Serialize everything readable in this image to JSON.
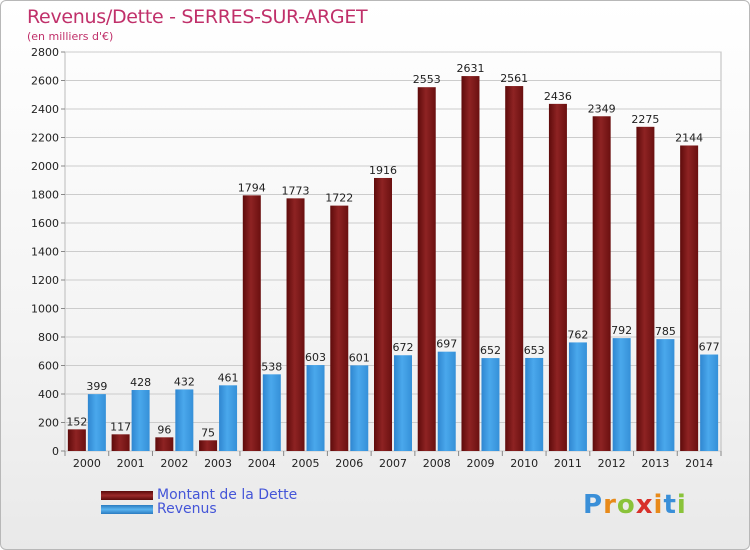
{
  "header": {
    "title": "Revenus/Dette - SERRES-SUR-ARGET",
    "subtitle": "(en milliers d'€)"
  },
  "legend": {
    "debt_label": "Montant de la Dette",
    "revenue_label": "Revenus"
  },
  "logo": {
    "letters": [
      "P",
      "r",
      "o",
      "x",
      "i",
      "t",
      "i"
    ],
    "colors": [
      "#3a8fd8",
      "#e88a1a",
      "#8ac33a",
      "#d8302a",
      "#e88a1a",
      "#3a8fd8",
      "#8ac33a"
    ]
  },
  "colors": {
    "debt": "#8b1a1a",
    "revenue": "#3a9be0",
    "grid": "#cccccc",
    "title": "#c0306a"
  },
  "chart_data": {
    "type": "bar",
    "title": "Revenus/Dette - SERRES-SUR-ARGET",
    "subtitle": "(en milliers d'€)",
    "categories": [
      "2000",
      "2001",
      "2002",
      "2003",
      "2004",
      "2005",
      "2006",
      "2007",
      "2008",
      "2009",
      "2010",
      "2011",
      "2012",
      "2013",
      "2014"
    ],
    "series": [
      {
        "name": "Montant de la Dette",
        "values": [
          152,
          117,
          96,
          75,
          1794,
          1773,
          1722,
          1916,
          2553,
          2631,
          2561,
          2436,
          2349,
          2275,
          2144
        ]
      },
      {
        "name": "Revenus",
        "values": [
          399,
          428,
          432,
          461,
          538,
          603,
          601,
          672,
          697,
          652,
          653,
          762,
          792,
          785,
          677
        ]
      }
    ],
    "ylim": [
      0,
      2800
    ],
    "yticks": [
      0,
      200,
      400,
      600,
      800,
      1000,
      1200,
      1400,
      1600,
      1800,
      2000,
      2200,
      2400,
      2600,
      2800
    ],
    "grid": true,
    "legend_position": "bottom-left"
  }
}
